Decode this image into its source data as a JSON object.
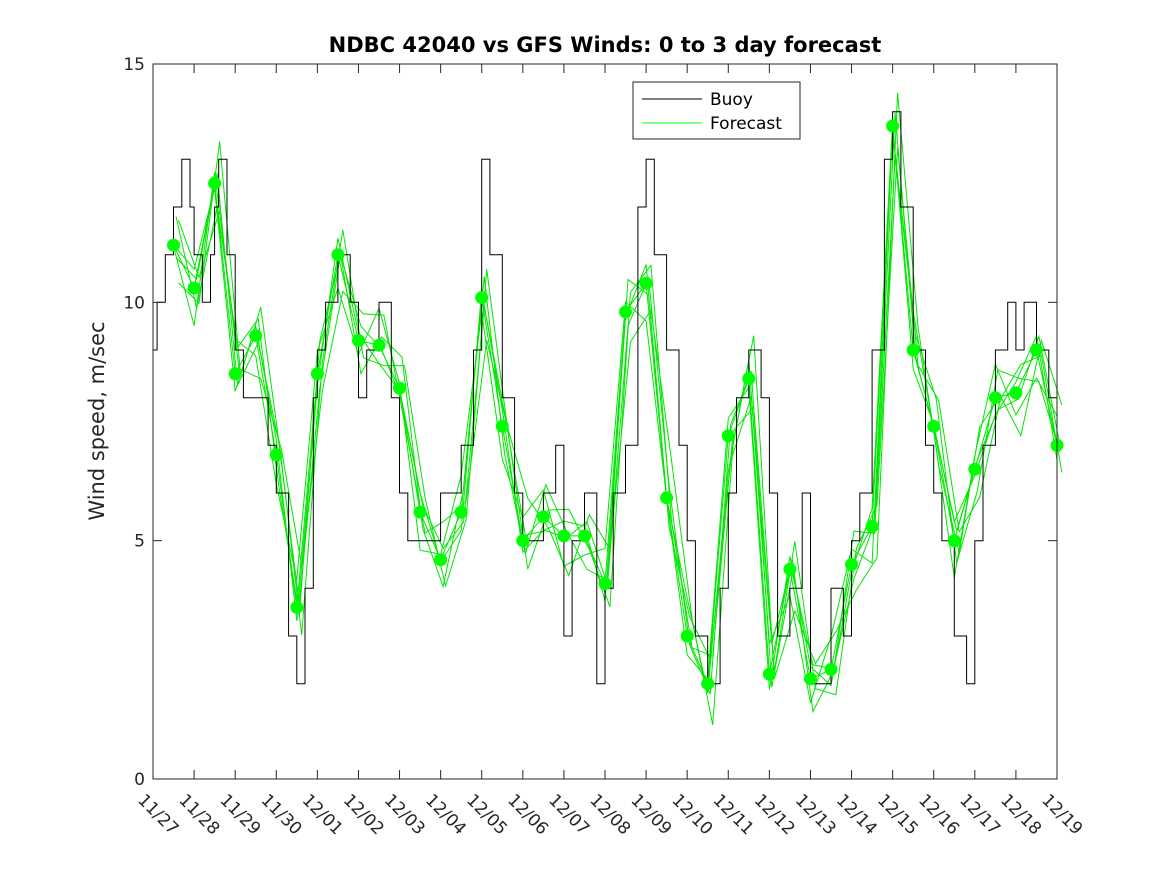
{
  "chart_data": {
    "type": "line",
    "title": "NDBC 42040 vs GFS Winds: 0 to 3 day forecast",
    "xlabel": "",
    "ylabel": "Wind speed, m/sec",
    "xlim": [
      0,
      22
    ],
    "ylim": [
      0,
      15
    ],
    "x_tick_labels": [
      "11/27",
      "11/28",
      "11/29",
      "11/30",
      "12/01",
      "12/02",
      "12/03",
      "12/04",
      "12/05",
      "12/06",
      "12/07",
      "12/08",
      "12/09",
      "12/10",
      "12/11",
      "12/12",
      "12/13",
      "12/14",
      "12/15",
      "12/16",
      "12/17",
      "12/18",
      "12/19"
    ],
    "y_ticks": [
      0,
      5,
      10,
      15
    ],
    "y_tick_labels": [
      "0",
      "5",
      "10",
      "15"
    ],
    "legend": {
      "position": "top-right-inset",
      "entries": [
        {
          "label": "Buoy",
          "color": "#000000"
        },
        {
          "label": "Forecast",
          "color": "#00ff00"
        }
      ]
    },
    "colors": {
      "buoy": "#000000",
      "forecast": "#00e600",
      "markers": "#00ff00"
    },
    "series": [
      {
        "name": "Buoy",
        "x": [
          0,
          0.1,
          0.3,
          0.5,
          0.7,
          0.9,
          1.0,
          1.2,
          1.4,
          1.5,
          1.6,
          1.8,
          2.0,
          2.2,
          2.5,
          2.8,
          3.0,
          3.3,
          3.5,
          3.7,
          3.9,
          4.0,
          4.2,
          4.5,
          4.8,
          5.0,
          5.2,
          5.5,
          5.8,
          6.0,
          6.2,
          6.5,
          6.8,
          7.0,
          7.2,
          7.5,
          7.8,
          8.0,
          8.2,
          8.5,
          8.8,
          9.0,
          9.2,
          9.5,
          9.8,
          10.0,
          10.2,
          10.5,
          10.8,
          11.0,
          11.2,
          11.5,
          11.8,
          12.0,
          12.2,
          12.5,
          12.8,
          13.0,
          13.2,
          13.5,
          13.8,
          14.0,
          14.2,
          14.5,
          14.8,
          15.0,
          15.2,
          15.5,
          15.8,
          16.0,
          16.2,
          16.5,
          16.8,
          17.0,
          17.2,
          17.5,
          17.8,
          18.0,
          18.2,
          18.5,
          18.8,
          19.0,
          19.2,
          19.5,
          19.8,
          20.0,
          20.2,
          20.5,
          20.8,
          21.0,
          21.2,
          21.5,
          21.8,
          22.0
        ],
        "y": [
          9,
          10,
          11,
          12,
          13,
          12,
          11,
          10,
          11,
          12,
          13,
          11,
          9,
          8,
          8,
          7,
          6,
          3,
          2,
          4,
          8,
          9,
          10,
          11,
          10,
          8,
          9,
          10,
          8,
          6,
          5,
          5,
          5,
          6,
          6,
          7,
          9,
          13,
          11,
          8,
          6,
          5,
          5,
          6,
          7,
          3,
          5,
          6,
          2,
          4,
          6,
          7,
          12,
          13,
          11,
          9,
          7,
          5,
          3,
          2,
          4,
          6,
          8,
          9,
          8,
          6,
          3,
          4,
          6,
          2,
          2,
          4,
          3,
          5,
          6,
          9,
          13,
          14,
          12,
          9,
          7,
          6,
          5,
          3,
          2,
          5,
          7,
          9,
          10,
          9,
          10,
          9,
          8,
          6
        ]
      },
      {
        "name": "Forecast",
        "x": [
          0.5,
          1.0,
          1.5,
          2.0,
          2.5,
          3.0,
          3.5,
          4.0,
          4.5,
          5.0,
          5.5,
          6.0,
          6.5,
          7.0,
          7.5,
          8.0,
          8.5,
          9.0,
          9.5,
          10.0,
          10.5,
          11.0,
          11.5,
          12.0,
          12.5,
          13.0,
          13.5,
          14.0,
          14.5,
          15.0,
          15.5,
          16.0,
          16.5,
          17.0,
          17.5,
          18.0,
          18.5,
          19.0,
          19.5,
          20.0,
          20.5,
          21.0,
          21.5,
          22.0
        ],
        "y": [
          11.2,
          10.3,
          12.5,
          8.5,
          9.3,
          6.8,
          3.6,
          8.5,
          11.0,
          9.2,
          9.1,
          8.2,
          5.6,
          4.6,
          5.6,
          10.1,
          7.4,
          5.0,
          5.5,
          5.1,
          5.1,
          4.1,
          9.8,
          10.4,
          5.9,
          3.0,
          2.0,
          7.2,
          8.4,
          2.2,
          4.4,
          2.1,
          2.3,
          4.5,
          5.3,
          13.7,
          9.0,
          7.4,
          5.0,
          6.5,
          8.0,
          8.1,
          9.0,
          7.0
        ]
      }
    ]
  }
}
